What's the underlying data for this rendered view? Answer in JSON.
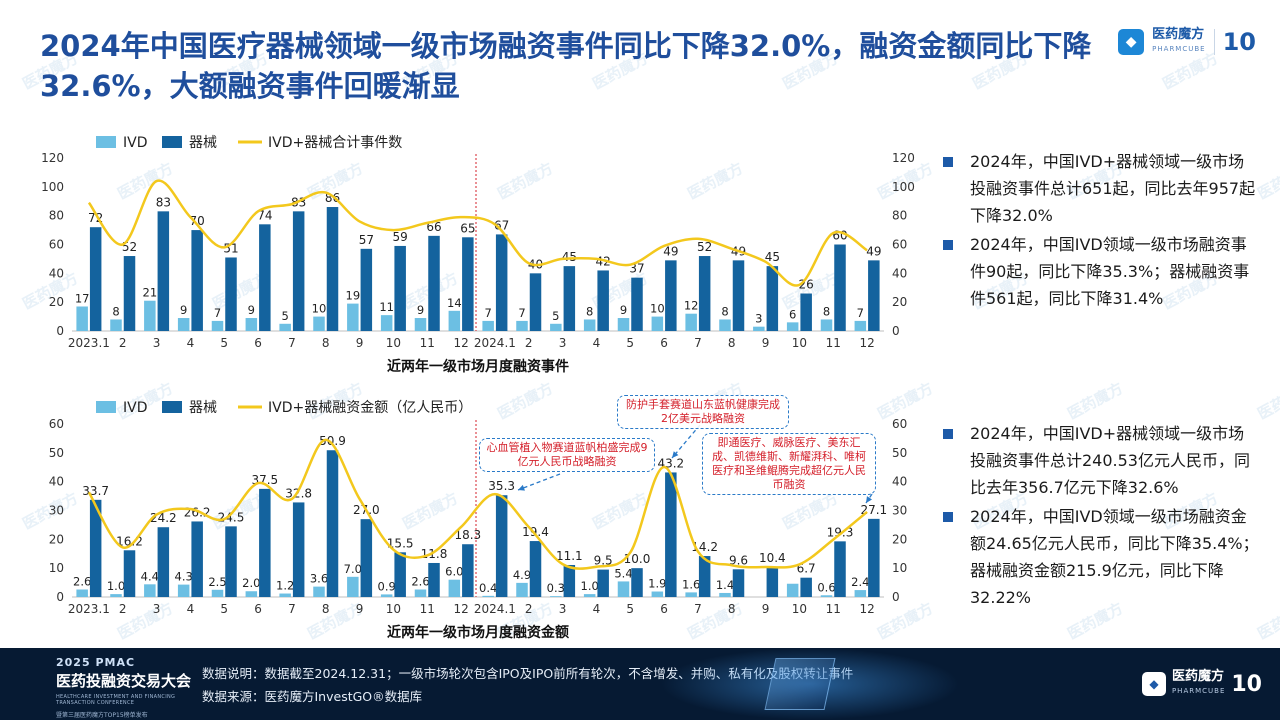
{
  "header": {
    "title": "2024年中国医疗器械领域一级市场融资事件同比下降32.0%，融资金额同比下降32.6%，大额融资事件回暖渐显",
    "logo_name": "医药魔方",
    "logo_sub": "PHARMCUBE",
    "logo_ten": "10"
  },
  "colors": {
    "ivd": "#6cbfe3",
    "device": "#14639e",
    "line": "#f3c81d",
    "axis": "#bfbfbf",
    "divider": "#d4202b",
    "accent": "#1f4e9c"
  },
  "chart_data": [
    {
      "type": "bar",
      "xlabel": "近两年一级市场月度融资事件",
      "categories": [
        "2023.1",
        "2",
        "3",
        "4",
        "5",
        "6",
        "7",
        "8",
        "9",
        "10",
        "11",
        "12",
        "2024.1",
        "2",
        "3",
        "4",
        "5",
        "6",
        "7",
        "8",
        "9",
        "10",
        "11",
        "12"
      ],
      "series": [
        {
          "name": "IVD",
          "values": [
            17,
            8,
            21,
            9,
            7,
            9,
            5,
            10,
            19,
            11,
            9,
            14,
            7,
            7,
            5,
            8,
            9,
            10,
            12,
            8,
            3,
            6,
            8,
            7
          ]
        },
        {
          "name": "器械",
          "values": [
            72,
            52,
            83,
            70,
            51,
            74,
            83,
            86,
            57,
            59,
            66,
            65,
            67,
            40,
            45,
            42,
            37,
            49,
            52,
            49,
            45,
            26,
            60,
            49
          ]
        },
        {
          "name": "IVD+器械合计事件数",
          "type": "line",
          "values": [
            89,
            60,
            104,
            79,
            58,
            83,
            88,
            96,
            76,
            70,
            75,
            79,
            74,
            47,
            50,
            50,
            46,
            59,
            64,
            57,
            48,
            32,
            68,
            56
          ]
        }
      ],
      "ylim": [
        0,
        120
      ],
      "y2lim": [
        0,
        120
      ],
      "yticks": [
        0,
        20,
        40,
        60,
        80,
        100,
        120
      ],
      "legend": "top-left"
    },
    {
      "type": "bar",
      "xlabel": "近两年一级市场月度融资金额",
      "categories": [
        "2023.1",
        "2",
        "3",
        "4",
        "5",
        "6",
        "7",
        "8",
        "9",
        "10",
        "11",
        "12",
        "2024.1",
        "2",
        "3",
        "4",
        "5",
        "6",
        "7",
        "8",
        "9",
        "10",
        "11",
        "12"
      ],
      "series": [
        {
          "name": "IVD",
          "values": [
            2.6,
            1.0,
            4.4,
            4.3,
            2.5,
            2.0,
            1.2,
            3.6,
            7.0,
            0.9,
            2.6,
            6.0,
            0.4,
            4.9,
            0.3,
            1.0,
            5.4,
            1.9,
            1.6,
            1.4,
            0,
            4.6,
            0.6,
            2.4
          ]
        },
        {
          "name": "器械",
          "values": [
            33.7,
            16.2,
            24.2,
            26.2,
            24.5,
            37.5,
            32.8,
            50.9,
            27.0,
            15.5,
            11.8,
            18.3,
            35.3,
            19.4,
            11.1,
            9.5,
            10.0,
            43.2,
            14.2,
            9.6,
            10.4,
            6.7,
            19.3,
            27.1
          ]
        },
        {
          "name": "IVD+器械融资金额（亿人民币）",
          "type": "line",
          "values": [
            36.3,
            17.2,
            28.6,
            30.5,
            27.0,
            39.5,
            34.0,
            54.5,
            34.0,
            16.4,
            14.4,
            24.3,
            35.7,
            24.3,
            11.4,
            10.5,
            15.4,
            45.1,
            15.8,
            11.0,
            10.4,
            11.3,
            19.9,
            29.5
          ]
        }
      ],
      "data_labels_ivd": [
        "2.6",
        "1.0",
        "4.4",
        "4.3",
        "2.5",
        "2.0",
        "1.2",
        "3.6",
        "7.0",
        "0.9",
        "2.6",
        "6.0",
        "0.4",
        "4.9",
        "0.3",
        "1.0",
        "5.4",
        "1.9",
        "1.6",
        "1.4",
        "",
        "",
        "0.6",
        "2.4"
      ],
      "ylim": [
        0,
        60
      ],
      "y2lim": [
        0,
        60
      ],
      "yticks": [
        0,
        10,
        20,
        30,
        40,
        50,
        60
      ],
      "legend": "top-left"
    }
  ],
  "notes": [
    "心血管植入物赛道蓝帆柏盛完成9亿元人民币战略融资",
    "防护手套赛道山东蓝帆健康完成2亿美元战略融资",
    "即通医疗、威脉医疗、美东汇成、凯德维斯、新耀湃科、唯柯医疗和圣维鲲腾完成超亿元人民币融资"
  ],
  "bullets_top": [
    "2024年，中国IVD+器械领域一级市场投融资事件总计651起，同比去年957起下降32.0%",
    "2024年，中国IVD领域一级市场融资事件90起，同比下降35.3%；器械融资事件561起，同比下降31.4%"
  ],
  "bullets_bottom": [
    "2024年，中国IVD+器械领域一级市场投融资事件总计240.53亿元人民币，同比去年356.7亿元下降32.6%",
    "2024年，中国IVD领域一级市场融资金额24.65亿元人民币，同比下降35.4%；器械融资金额215.9亿元，同比下降32.22%"
  ],
  "footer": {
    "pmac": "2025 PMAC",
    "event_name": "医药投融资交易大会",
    "event_en": "HEALTHCARE INVESTMENT AND FINANCING TRANSACTION CONFERENCE",
    "event_sub": "暨第三届医药魔方TOP15榜单发布",
    "note1": "数据说明：数据截至2024.12.31；一级市场轮次包含IPO及IPO前所有轮次，不含增发、并购、私有化及股权转让事件",
    "note2": "数据来源：医药魔方InvestGO®数据库"
  }
}
